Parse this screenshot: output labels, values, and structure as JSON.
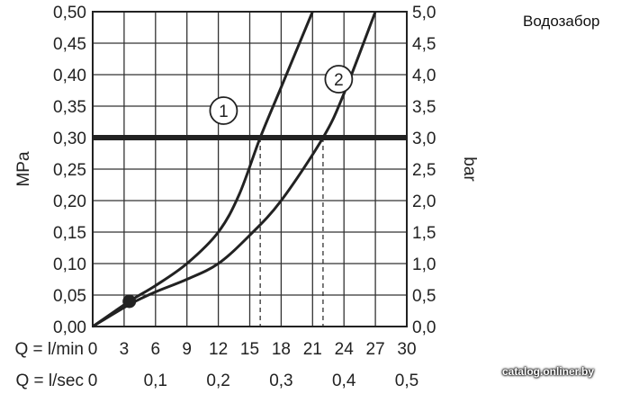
{
  "note": "Водозабор",
  "watermark": "catalog.onliner.by",
  "chart_data": {
    "type": "line",
    "y_left": {
      "label": "MPa",
      "range": [
        0,
        0.5
      ],
      "ticks": [
        "0,00",
        "0,05",
        "0,10",
        "0,15",
        "0,20",
        "0,25",
        "0,30",
        "0,35",
        "0,40",
        "0,45",
        "0,50"
      ]
    },
    "y_right": {
      "label": "bar",
      "range": [
        0,
        5
      ],
      "ticks": [
        "0,0",
        "0,5",
        "1,0",
        "1,5",
        "2,0",
        "2,5",
        "3,0",
        "3,5",
        "4,0",
        "4,5",
        "5,0"
      ]
    },
    "x_flow_min": {
      "label": "Q = l/min",
      "range": [
        0,
        30
      ],
      "ticks": [
        "0",
        "3",
        "6",
        "9",
        "12",
        "15",
        "18",
        "21",
        "24",
        "27",
        "30"
      ]
    },
    "x_flow_sec": {
      "label": "Q = l/sec",
      "ticks": [
        {
          "value": 0,
          "text": "0"
        },
        {
          "value": 0.1,
          "text": "0,1"
        },
        {
          "value": 0.2,
          "text": "0,2"
        },
        {
          "value": 0.3,
          "text": "0,3"
        },
        {
          "value": 0.4,
          "text": "0,4"
        },
        {
          "value": 0.5,
          "text": "0,5"
        }
      ]
    },
    "reference_line": {
      "y": 0.3
    },
    "series": [
      {
        "name": "1",
        "points": [
          [
            0,
            0
          ],
          [
            3.5,
            0.04
          ],
          [
            6,
            0.065
          ],
          [
            9,
            0.1
          ],
          [
            12,
            0.15
          ],
          [
            14,
            0.21
          ],
          [
            16,
            0.3
          ],
          [
            18,
            0.38
          ],
          [
            21,
            0.5
          ]
        ]
      },
      {
        "name": "2",
        "points": [
          [
            0,
            0
          ],
          [
            3.5,
            0.035
          ],
          [
            6,
            0.055
          ],
          [
            9,
            0.075
          ],
          [
            12,
            0.1
          ],
          [
            15,
            0.145
          ],
          [
            18,
            0.2
          ],
          [
            22,
            0.3
          ],
          [
            24,
            0.37
          ],
          [
            27,
            0.5
          ]
        ]
      }
    ],
    "dashed_markers": [
      {
        "x": 16,
        "y": 0.3
      },
      {
        "x": 22,
        "y": 0.3
      }
    ],
    "dot": {
      "x": 3.5,
      "y": 0.04
    },
    "grid": true
  }
}
